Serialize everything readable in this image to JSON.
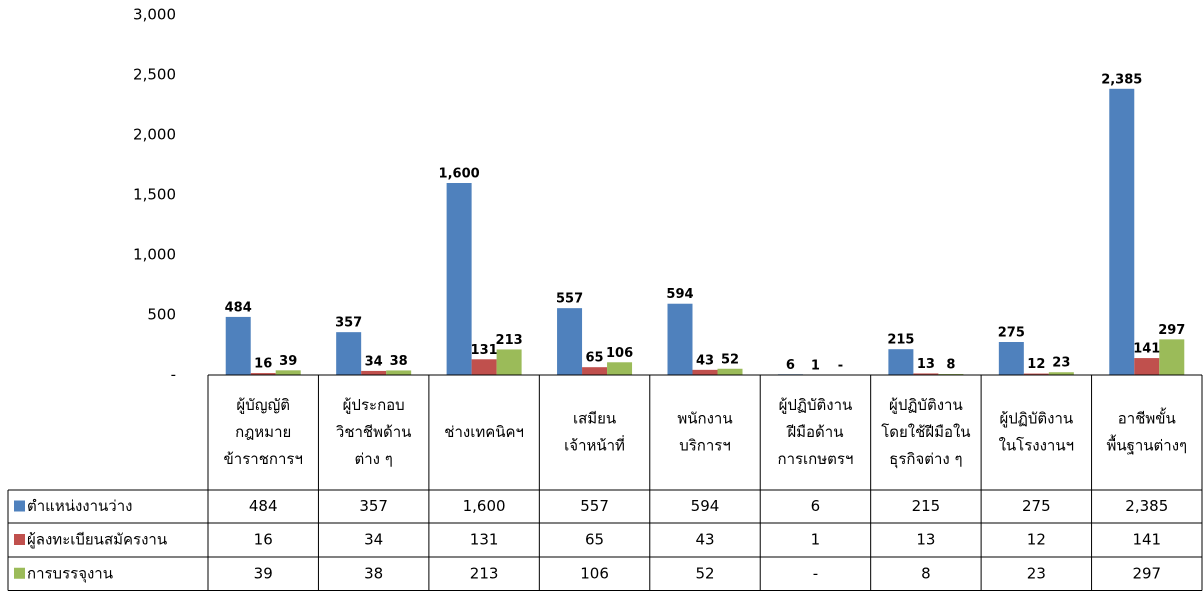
{
  "chart_data": {
    "type": "bar",
    "categories": [
      "ผู้บัญญัติ\nกฎหมาย\nข้าราชการฯ",
      "ผู้ประกอบ\nวิชาชีพด้าน\nต่าง ๆ",
      "ช่างเทคนิคฯ",
      "เสมียน\nเจ้าหน้าที่",
      "พนักงาน\nบริการฯ",
      "ผู้ปฏิบัติงาน\nฝีมือด้าน\nการเกษตรฯ",
      "ผู้ปฏิบัติงาน\nโดยใช้ฝีมือใน\nธุรกิจต่าง ๆ",
      "ผู้ปฏิบัติงาน\nในโรงงานฯ",
      "อาชีพขั้น\nพื้นฐานต่างๆ"
    ],
    "series": [
      {
        "name": "ตำแหน่งงานว่าง",
        "color": "#4f81bd",
        "label_color": "#000000",
        "values": [
          484,
          357,
          1600,
          557,
          594,
          6,
          215,
          275,
          2385
        ],
        "value_labels": [
          "484",
          "357",
          "1,600",
          "557",
          "594",
          "6",
          "215",
          "275",
          "2,385"
        ]
      },
      {
        "name": "ผู้ลงทะเบียนสมัครงาน",
        "color": "#c0504d",
        "label_color": "#c00000",
        "values": [
          16,
          34,
          131,
          65,
          43,
          1,
          13,
          12,
          141
        ],
        "value_labels": [
          "16",
          "34",
          "131",
          "65",
          "43",
          "1",
          "13",
          "12",
          "141"
        ]
      },
      {
        "name": "การบรรจุงาน",
        "color": "#9bbb59",
        "label_color": "#2e9a2e",
        "values": [
          39,
          38,
          213,
          106,
          52,
          0,
          8,
          23,
          297
        ],
        "value_labels": [
          "39",
          "38",
          "213",
          "106",
          "52",
          "-",
          "8",
          "23",
          "297"
        ]
      }
    ],
    "ylim": [
      0,
      3000
    ],
    "yticks": [
      {
        "value": 0,
        "label": "-"
      },
      500,
      {
        "value": 1000,
        "label": "1,000"
      },
      {
        "value": 1500,
        "label": "1,500"
      },
      {
        "value": 2000,
        "label": "2,000"
      },
      {
        "value": 2500,
        "label": "2,500"
      },
      {
        "value": 3000,
        "label": "3,000"
      }
    ]
  }
}
